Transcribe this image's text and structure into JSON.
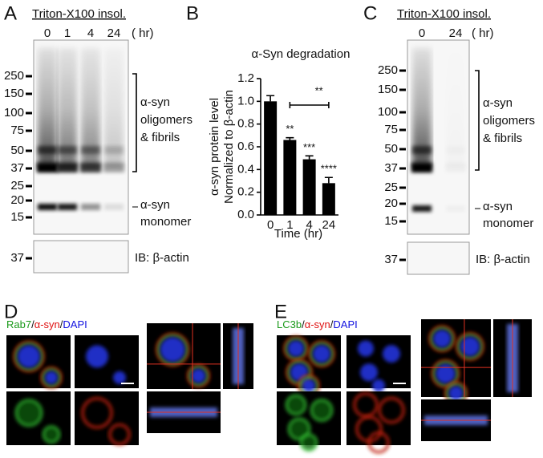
{
  "panel_a": {
    "label": "A",
    "header": "Triton-X100 insol.",
    "lanes": [
      "0",
      "1",
      "4",
      "24"
    ],
    "unit": "( hr)",
    "markers": [
      250,
      150,
      100,
      75,
      50,
      37,
      25,
      20,
      15
    ],
    "oligomer_label": [
      "α-syn",
      "oligomers",
      "& fibrils"
    ],
    "monomer_label": [
      "α-syn",
      "monomer"
    ],
    "loading_marker": 37,
    "loading_label": "IB: β-actin"
  },
  "chart_data": {
    "type": "bar",
    "label": "B",
    "title": "α-Syn degradation",
    "categories": [
      "0",
      "1",
      "4",
      "24"
    ],
    "values": [
      1.0,
      0.66,
      0.49,
      0.28
    ],
    "errors": [
      0.05,
      0.02,
      0.03,
      0.05
    ],
    "color": "#000000",
    "xlabel": "Time (hr)",
    "ylabel": [
      "α-syn protein  level",
      "Normalized to β-actin"
    ],
    "ylim": [
      0,
      1.2
    ],
    "yticks": [
      {
        "value": 0,
        "label": "0.0"
      },
      0.2,
      0.4,
      0.6,
      0.8,
      {
        "value": 1,
        "label": "1.0"
      },
      1.2
    ],
    "significance": [
      "**",
      "***",
      "****"
    ],
    "bracket": {
      "from": "1",
      "to": "24",
      "label": "**"
    }
  },
  "panel_c": {
    "label": "C",
    "header": "Triton-X100 insol.",
    "lanes": [
      "0",
      "24"
    ],
    "unit": "( hr)",
    "markers": [
      250,
      150,
      100,
      75,
      50,
      37,
      25,
      20,
      15
    ],
    "oligomer_label": [
      "α-syn",
      "oligomers",
      "& fibrils"
    ],
    "monomer_label": [
      "α-syn",
      "monomer"
    ],
    "loading_marker": 37,
    "loading_label": "IB: β-actin"
  },
  "panel_d": {
    "label": "D",
    "stain": [
      {
        "text": "Rab7",
        "color": "#1a9a1a"
      },
      {
        "text": "/",
        "color": "#111111"
      },
      {
        "text": "α-syn",
        "color": "#e01010"
      },
      {
        "text": "/",
        "color": "#111111"
      },
      {
        "text": "DAPI",
        "color": "#1010e0"
      }
    ]
  },
  "panel_e": {
    "label": "E",
    "stain": [
      {
        "text": "LC3b",
        "color": "#1a9a1a"
      },
      {
        "text": "/",
        "color": "#111111"
      },
      {
        "text": "α-syn",
        "color": "#e01010"
      },
      {
        "text": "/",
        "color": "#111111"
      },
      {
        "text": "DAPI",
        "color": "#1010e0"
      }
    ]
  }
}
